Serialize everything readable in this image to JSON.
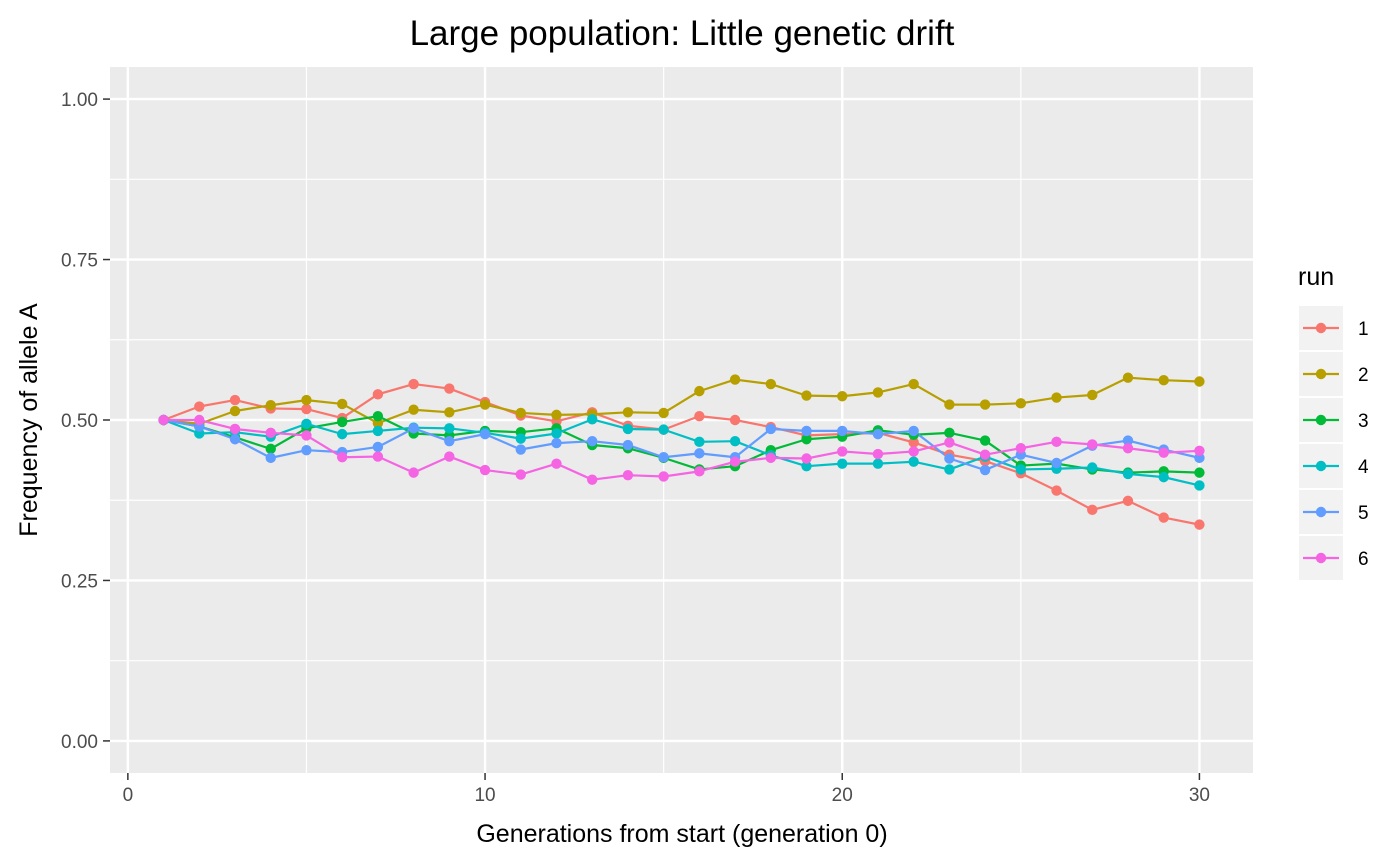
{
  "chart_data": {
    "type": "line",
    "title": "Large population: Little genetic drift",
    "xlabel": "Generations from start (generation 0)",
    "ylabel": "Frequency of allele A",
    "xlim": [
      -0.5,
      31.5
    ],
    "ylim": [
      -0.05,
      1.05
    ],
    "x_ticks": [
      0,
      10,
      20,
      30
    ],
    "x_tick_labels": [
      "0",
      "10",
      "20",
      "30"
    ],
    "y_ticks": [
      0,
      0.25,
      0.5,
      0.75,
      1.0
    ],
    "y_tick_labels": [
      "0.00",
      "0.25",
      "0.50",
      "0.75",
      "1.00"
    ],
    "grid": true,
    "legend": {
      "title": "run",
      "position": "right"
    },
    "x": [
      1,
      2,
      3,
      4,
      5,
      6,
      7,
      8,
      9,
      10,
      11,
      12,
      13,
      14,
      15,
      16,
      17,
      18,
      19,
      20,
      21,
      22,
      23,
      24,
      25,
      26,
      27,
      28,
      29,
      30
    ],
    "series": [
      {
        "name": "1",
        "color": "#F8766D",
        "values": [
          0.5,
          0.521,
          0.531,
          0.518,
          0.517,
          0.503,
          0.54,
          0.556,
          0.549,
          0.528,
          0.507,
          0.498,
          0.512,
          0.491,
          0.485,
          0.506,
          0.5,
          0.489,
          0.476,
          0.478,
          0.48,
          0.465,
          0.446,
          0.436,
          0.417,
          0.39,
          0.36,
          0.374,
          0.348,
          0.337
        ]
      },
      {
        "name": "2",
        "color": "#B79F00",
        "values": [
          0.5,
          0.494,
          0.514,
          0.523,
          0.531,
          0.525,
          0.495,
          0.516,
          0.512,
          0.524,
          0.511,
          0.508,
          0.509,
          0.512,
          0.511,
          0.545,
          0.563,
          0.556,
          0.538,
          0.537,
          0.543,
          0.556,
          0.524,
          0.524,
          0.526,
          0.535,
          0.539,
          0.566,
          0.562,
          0.56
        ]
      },
      {
        "name": "3",
        "color": "#00BA38",
        "values": [
          0.5,
          0.49,
          0.473,
          0.455,
          0.487,
          0.497,
          0.506,
          0.479,
          0.476,
          0.483,
          0.481,
          0.487,
          0.461,
          0.456,
          0.441,
          0.423,
          0.428,
          0.453,
          0.47,
          0.474,
          0.484,
          0.477,
          0.48,
          0.468,
          0.429,
          0.432,
          0.423,
          0.418,
          0.42,
          0.418
        ]
      },
      {
        "name": "4",
        "color": "#00BFC4",
        "values": [
          0.5,
          0.479,
          0.481,
          0.474,
          0.494,
          0.478,
          0.483,
          0.488,
          0.487,
          0.48,
          0.471,
          0.479,
          0.501,
          0.486,
          0.485,
          0.466,
          0.467,
          0.445,
          0.428,
          0.432,
          0.432,
          0.435,
          0.423,
          0.443,
          0.423,
          0.424,
          0.426,
          0.416,
          0.411,
          0.398
        ]
      },
      {
        "name": "5",
        "color": "#619CFF",
        "values": [
          0.5,
          0.49,
          0.47,
          0.441,
          0.453,
          0.45,
          0.458,
          0.487,
          0.467,
          0.478,
          0.454,
          0.464,
          0.467,
          0.461,
          0.442,
          0.448,
          0.442,
          0.486,
          0.483,
          0.483,
          0.478,
          0.483,
          0.44,
          0.422,
          0.446,
          0.433,
          0.46,
          0.468,
          0.454,
          0.441
        ]
      },
      {
        "name": "6",
        "color": "#F564E3",
        "values": [
          0.5,
          0.5,
          0.486,
          0.48,
          0.476,
          0.442,
          0.443,
          0.418,
          0.443,
          0.422,
          0.415,
          0.432,
          0.407,
          0.414,
          0.412,
          0.42,
          0.435,
          0.441,
          0.44,
          0.451,
          0.447,
          0.451,
          0.465,
          0.446,
          0.456,
          0.466,
          0.462,
          0.456,
          0.449,
          0.452
        ]
      }
    ]
  }
}
